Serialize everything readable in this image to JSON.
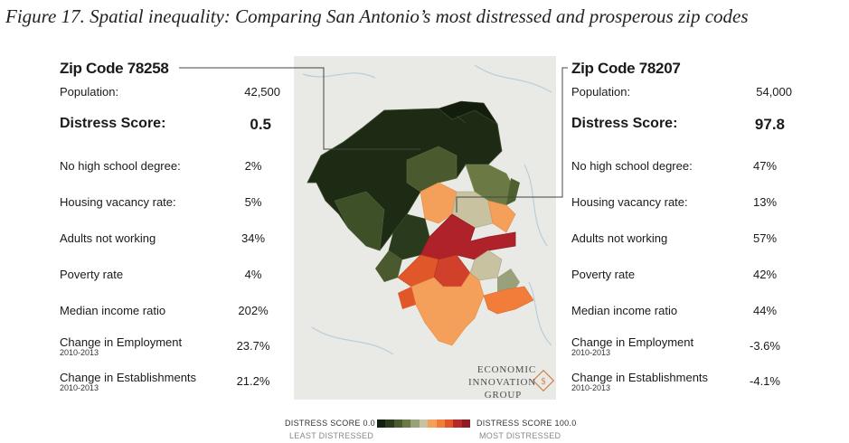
{
  "title": "Figure 17. Spatial inequality: Comparing San Antonio’s most distressed and prosperous zip codes",
  "left": {
    "zip": "Zip Code 78258",
    "population_label": "Population:",
    "population": "42,500",
    "score_label": "Distress Score:",
    "score": "0.5",
    "rows": [
      {
        "label": "No high school degree:",
        "value": "2%"
      },
      {
        "label": "Housing vacancy rate:",
        "value": "5%"
      },
      {
        "label": "Adults not working",
        "value": "34%"
      },
      {
        "label": "Poverty rate",
        "value": "4%"
      },
      {
        "label": "Median income ratio",
        "value": "202%"
      },
      {
        "label": "Change in Employment",
        "sub": "2010-2013",
        "value": "23.7%"
      },
      {
        "label": "Change in Establishments",
        "sub": "2010-2013",
        "value": "21.2%"
      }
    ]
  },
  "right": {
    "zip": "Zip Code 78207",
    "population_label": "Population:",
    "population": "54,000",
    "score_label": "Distress Score:",
    "score": "97.8",
    "rows": [
      {
        "label": "No high school degree:",
        "value": "47%"
      },
      {
        "label": "Housing vacancy rate:",
        "value": "13%"
      },
      {
        "label": "Adults not working",
        "value": "57%"
      },
      {
        "label": "Poverty rate",
        "value": "42%"
      },
      {
        "label": "Median income ratio",
        "value": "44%"
      },
      {
        "label": "Change in Employment",
        "sub": "2010-2013",
        "value": "-3.6%"
      },
      {
        "label": "Change in Establishments",
        "sub": "2010-2013",
        "value": "-4.1%"
      }
    ]
  },
  "logo": {
    "line1": "ECONOMIC",
    "line2": "INNOVATION",
    "line3": "GROUP"
  },
  "legend": {
    "low_label": "DISTRESS SCORE 0.0",
    "low_sub": "LEAST DISTRESSED",
    "high_label": "DISTRESS SCORE 100.0",
    "high_sub": "MOST DISTRESSED",
    "colors": [
      "#14200f",
      "#2a3a1c",
      "#4a5a2e",
      "#6b7a45",
      "#98a07c",
      "#c8c2a0",
      "#f5a05a",
      "#f27c3a",
      "#e0582a",
      "#b52a2a",
      "#8e1c22"
    ]
  },
  "colors": {
    "prosperous": "#1e2c16",
    "distressed": "#b0222a",
    "map_bg": "#e8e8e4",
    "leader": "#444444"
  }
}
